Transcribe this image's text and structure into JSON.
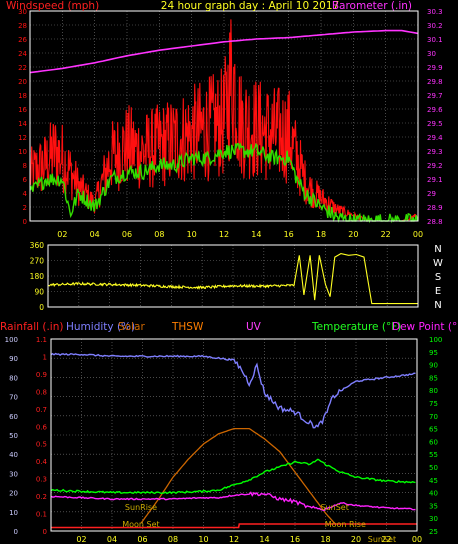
{
  "title": "24 hour graph day : April 10 2017",
  "colors": {
    "background": "#000000",
    "frame": "#ffffff",
    "grid": "#777777",
    "windspeed": "#ff1010",
    "windspeed_avg": "#33dd00",
    "barometer": "#ff33ff",
    "wind_dir": "#ffff22",
    "humidity": "#7f7fff",
    "temperature": "#00ff00",
    "dew_point": "#ff22ff",
    "rainfall": "#ff2020",
    "solar": "#cc6600",
    "thsw": "#ff7f00",
    "uv": "#ff3fff",
    "sun_moon_label": "#ccaa00"
  },
  "chart_data": [
    {
      "type": "line",
      "panel": "wind-barometer",
      "ylabel_left": "Windspeed (mph)",
      "ylabel_right": "Barometer (.in)",
      "ylim_left": [
        0,
        30
      ],
      "yticks_left": [
        "0",
        "2",
        "4",
        "6",
        "8",
        "10",
        "12",
        "14",
        "16",
        "18",
        "20",
        "22",
        "24",
        "26",
        "28",
        "30"
      ],
      "ylim_right": [
        28.8,
        30.3
      ],
      "yticks_right": [
        "28.8",
        "28.9",
        "29",
        "29.1",
        "29.2",
        "29.3",
        "29.4",
        "29.5",
        "29.6",
        "29.7",
        "29.8",
        "29.9",
        "30",
        "30.1",
        "30.2",
        "30.3"
      ],
      "xticks": [
        "02",
        "04",
        "06",
        "08",
        "10",
        "12",
        "14",
        "16",
        "18",
        "20",
        "22",
        "00"
      ],
      "grid": true,
      "series": [
        {
          "key": "gust",
          "axis": "left",
          "x": [
            0,
            1,
            1.5,
            2,
            3,
            4,
            5,
            6,
            7,
            8,
            9,
            10,
            11,
            12,
            12.5,
            13,
            14,
            15,
            16,
            16.5,
            17,
            17.5,
            18,
            18.5,
            19,
            20,
            21,
            22,
            23,
            24
          ],
          "values": [
            8,
            10,
            12,
            11,
            6,
            3,
            11,
            13,
            12,
            13,
            14,
            15,
            16,
            17,
            26,
            17,
            16,
            15,
            15,
            11,
            7,
            5,
            4,
            3,
            2,
            1,
            0,
            0,
            0,
            1
          ]
        },
        {
          "key": "average",
          "axis": "left",
          "x": [
            0,
            1,
            2,
            2.5,
            3,
            4,
            5,
            6,
            7,
            8,
            9,
            10,
            11,
            12,
            13,
            14,
            15,
            16,
            16.5,
            17,
            18,
            19,
            20,
            21,
            22,
            23,
            24
          ],
          "values": [
            4,
            6,
            6,
            1,
            4,
            2,
            6,
            7,
            7,
            8,
            8,
            9,
            9,
            10,
            10,
            10,
            9,
            9,
            6,
            4,
            2,
            0.5,
            0,
            0,
            0,
            0,
            0
          ]
        },
        {
          "key": "barometer",
          "axis": "right",
          "x": [
            0,
            2,
            4,
            6,
            8,
            10,
            12,
            14,
            16,
            18,
            20,
            22,
            23,
            24
          ],
          "values": [
            29.86,
            29.89,
            29.93,
            29.98,
            30.02,
            30.05,
            30.08,
            30.1,
            30.11,
            30.13,
            30.15,
            30.16,
            30.16,
            30.14
          ]
        }
      ]
    },
    {
      "type": "line",
      "panel": "wind-direction",
      "yticks": [
        "0",
        "90",
        "180",
        "270",
        "360"
      ],
      "ylim": [
        0,
        360
      ],
      "compass": [
        "N",
        "W",
        "S",
        "E",
        "N"
      ],
      "grid": true,
      "series": [
        {
          "key": "direction",
          "x": [
            0,
            2,
            4,
            6,
            8,
            10,
            12,
            14,
            16,
            16.3,
            16.6,
            17,
            17.3,
            17.6,
            18,
            18.3,
            18.6,
            19,
            19.5,
            20,
            20.5,
            21,
            22,
            23,
            24
          ],
          "values": [
            128,
            135,
            131,
            126,
            118,
            113,
            123,
            121,
            126,
            300,
            70,
            300,
            40,
            300,
            130,
            60,
            290,
            310,
            300,
            305,
            290,
            20,
            20,
            20,
            20
          ]
        }
      ]
    },
    {
      "type": "line",
      "panel": "rain-humidity-temperature",
      "ylabel_rain": "Rainfall (.in)",
      "ylabel_humidity": "Humidity (%)",
      "label_solar": "Solar",
      "label_thsw": "THSW",
      "label_uv": "UV",
      "ylabel_temperature": "Temperature (°F)",
      "ylabel_dew": "Dew Point (°F)",
      "ylim_humidity": [
        0,
        100
      ],
      "yticks_humidity": [
        "0",
        "10",
        "20",
        "30",
        "40",
        "50",
        "60",
        "70",
        "80",
        "90",
        "100"
      ],
      "ylim_rain": [
        0,
        1.1
      ],
      "yticks_rain": [
        "0",
        "0.1",
        "0.2",
        "0.3",
        "0.4",
        "0.5",
        "0.6",
        "0.7",
        "0.8",
        "0.9",
        "1",
        "1.1"
      ],
      "ylim_temperature": [
        25,
        100
      ],
      "yticks_temperature": [
        "25",
        "30",
        "35",
        "40",
        "45",
        "50",
        "55",
        "60",
        "65",
        "70",
        "75",
        "80",
        "85",
        "90",
        "95",
        "100"
      ],
      "xticks": [
        "02",
        "04",
        "06",
        "08",
        "10",
        "12",
        "14",
        "16",
        "18",
        "20",
        "22",
        "00"
      ],
      "grid": true,
      "events": [
        {
          "label": "SunRise",
          "x": 5.9,
          "row": "upper"
        },
        {
          "label": "SunSet",
          "x": 18.6,
          "row": "upper"
        },
        {
          "label": "Moon Set",
          "x": 5.9,
          "row": "lower"
        },
        {
          "label": "Moon Rise",
          "x": 19.3,
          "row": "lower"
        },
        {
          "label": "SunSet",
          "x": 21.7,
          "row": "bottom"
        }
      ],
      "series": [
        {
          "key": "humidity",
          "axis": "humidity",
          "x": [
            0,
            2,
            4,
            6,
            8,
            10,
            11,
            12,
            12.5,
            13,
            13.5,
            14,
            15,
            16,
            17,
            17.5,
            18,
            18.5,
            19,
            20,
            21,
            22,
            23,
            24
          ],
          "values": [
            92,
            92,
            91,
            91,
            91,
            91,
            90,
            89,
            84,
            77,
            86,
            72,
            64,
            62,
            56,
            54,
            60,
            70,
            73,
            78,
            79,
            80,
            81,
            82
          ]
        },
        {
          "key": "temperature",
          "axis": "temperature",
          "x": [
            0,
            2,
            4,
            6,
            8,
            10,
            11,
            12,
            13,
            14,
            15,
            16,
            17,
            17.5,
            18,
            19,
            20,
            22,
            24
          ],
          "values": [
            41,
            40.5,
            40,
            40,
            40,
            40.5,
            41,
            43,
            45,
            48,
            50,
            52,
            51,
            53,
            51,
            48,
            46,
            44.5,
            44
          ]
        },
        {
          "key": "dew_point",
          "axis": "temperature",
          "x": [
            0,
            2,
            4,
            6,
            8,
            10,
            11,
            12,
            13,
            14,
            15,
            16,
            17,
            18,
            19,
            20,
            22,
            24
          ],
          "values": [
            38.5,
            38,
            37.5,
            37.5,
            37.5,
            38,
            38,
            39,
            39.5,
            39.5,
            37.5,
            36.5,
            34,
            33.5,
            36,
            35,
            34,
            33.5
          ]
        },
        {
          "key": "solar",
          "axis": "temperature",
          "x": [
            5.9,
            7,
            8,
            9,
            10,
            11,
            12,
            12.5,
            13,
            14,
            15,
            16,
            17,
            18,
            18.6
          ],
          "values": [
            28,
            37,
            46,
            53,
            59,
            63,
            65,
            65,
            65,
            61,
            56,
            48,
            40,
            32,
            28
          ]
        },
        {
          "key": "rainfall",
          "axis": "rain",
          "x": [
            0,
            12.3,
            12.35,
            24
          ],
          "values": [
            0.02,
            0.02,
            0.04,
            0.04
          ]
        }
      ]
    }
  ]
}
